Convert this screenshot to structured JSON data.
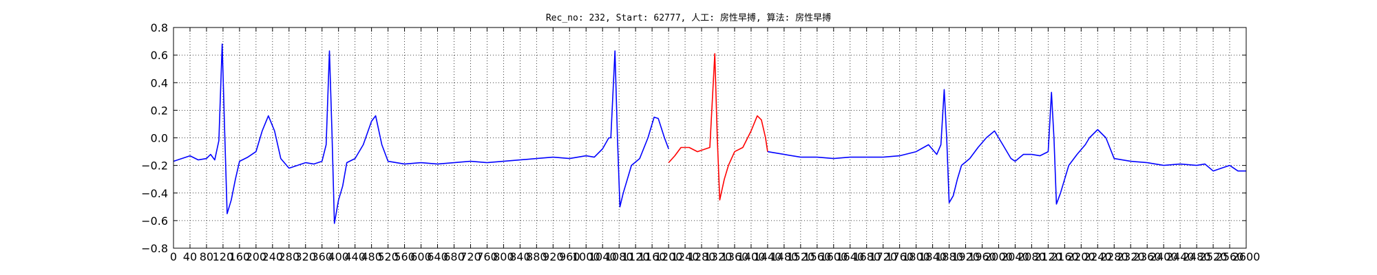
{
  "chart_data": {
    "type": "line",
    "title": "Rec_no: 232, Start: 62777, 人工: 房性早搏, 算法: 房性早搏",
    "xlabel": "",
    "ylabel": "",
    "xlim": [
      0,
      1560
    ],
    "ylim": [
      -0.8,
      0.8
    ],
    "grid": true,
    "x_step": 20,
    "x_tick_labels": [
      "0",
      "40",
      "80",
      "120",
      "160",
      "200",
      "240",
      "280",
      "320",
      "360",
      "400",
      "440",
      "480",
      "520",
      "560",
      "600",
      "640",
      "680",
      "720",
      "760",
      "800",
      "840",
      "880",
      "920",
      "960",
      "1000",
      "1040",
      "1080",
      "1120",
      "1160",
      "1200",
      "1240",
      "1280",
      "1320",
      "1360",
      "1400",
      "1440",
      "1480",
      "1520",
      "1560",
      "1600",
      "1640",
      "1680",
      "1720",
      "1760",
      "1800",
      "1840",
      "1880",
      "1920",
      "1960",
      "2000",
      "2040",
      "2080",
      "2120",
      "2160",
      "2200",
      "2240",
      "2280",
      "2320",
      "2360",
      "2400",
      "2440",
      "2480",
      "2520",
      "2560",
      "2600"
    ],
    "y_ticks": [
      "0.8",
      "0.6",
      "0.4",
      "0.2",
      "0.0",
      "−0.2",
      "−0.4",
      "−0.6",
      "−0.8"
    ],
    "colors": {
      "normal": "#0000ff",
      "highlight": "#ff0000"
    },
    "series": [
      {
        "color": "blue",
        "x_range": [
          0,
          1200
        ],
        "points": [
          [
            0,
            -0.17
          ],
          [
            20,
            -0.15
          ],
          [
            40,
            -0.13
          ],
          [
            60,
            -0.16
          ],
          [
            80,
            -0.15
          ],
          [
            90,
            -0.12
          ],
          [
            100,
            -0.16
          ],
          [
            110,
            -0.02
          ],
          [
            118,
            0.68
          ],
          [
            124,
            0.05
          ],
          [
            130,
            -0.55
          ],
          [
            140,
            -0.45
          ],
          [
            150,
            -0.3
          ],
          [
            160,
            -0.17
          ],
          [
            180,
            -0.14
          ],
          [
            200,
            -0.1
          ],
          [
            215,
            0.05
          ],
          [
            230,
            0.16
          ],
          [
            245,
            0.05
          ],
          [
            260,
            -0.15
          ],
          [
            280,
            -0.22
          ],
          [
            300,
            -0.2
          ],
          [
            320,
            -0.18
          ],
          [
            340,
            -0.19
          ],
          [
            360,
            -0.17
          ],
          [
            370,
            -0.05
          ],
          [
            378,
            0.63
          ],
          [
            384,
            0.05
          ],
          [
            390,
            -0.62
          ],
          [
            400,
            -0.45
          ],
          [
            410,
            -0.35
          ],
          [
            420,
            -0.18
          ],
          [
            440,
            -0.15
          ],
          [
            460,
            -0.05
          ],
          [
            480,
            0.12
          ],
          [
            490,
            0.16
          ],
          [
            505,
            -0.05
          ],
          [
            520,
            -0.17
          ],
          [
            560,
            -0.19
          ],
          [
            600,
            -0.18
          ],
          [
            640,
            -0.19
          ],
          [
            680,
            -0.18
          ],
          [
            720,
            -0.17
          ],
          [
            760,
            -0.18
          ],
          [
            800,
            -0.17
          ],
          [
            840,
            -0.16
          ],
          [
            880,
            -0.15
          ],
          [
            920,
            -0.14
          ],
          [
            960,
            -0.15
          ],
          [
            1000,
            -0.13
          ],
          [
            1020,
            -0.14
          ],
          [
            1040,
            -0.08
          ],
          [
            1055,
            0.0
          ],
          [
            1060,
            0.0
          ],
          [
            1070,
            0.63
          ],
          [
            1076,
            0.0
          ],
          [
            1082,
            -0.5
          ],
          [
            1090,
            -0.4
          ],
          [
            1100,
            -0.3
          ],
          [
            1110,
            -0.2
          ],
          [
            1130,
            -0.15
          ],
          [
            1150,
            0.0
          ],
          [
            1165,
            0.15
          ],
          [
            1175,
            0.14
          ],
          [
            1190,
            0.0
          ],
          [
            1200,
            -0.08
          ]
        ]
      },
      {
        "color": "red",
        "x_range": [
          1200,
          1440
        ],
        "points": [
          [
            1200,
            -0.18
          ],
          [
            1215,
            -0.13
          ],
          [
            1230,
            -0.07
          ],
          [
            1250,
            -0.07
          ],
          [
            1270,
            -0.1
          ],
          [
            1290,
            -0.08
          ],
          [
            1300,
            -0.07
          ],
          [
            1312,
            0.61
          ],
          [
            1318,
            0.0
          ],
          [
            1324,
            -0.45
          ],
          [
            1335,
            -0.3
          ],
          [
            1345,
            -0.2
          ],
          [
            1360,
            -0.1
          ],
          [
            1380,
            -0.07
          ],
          [
            1400,
            0.05
          ],
          [
            1415,
            0.16
          ],
          [
            1425,
            0.13
          ],
          [
            1435,
            0.0
          ],
          [
            1440,
            -0.1
          ]
        ]
      },
      {
        "color": "blue",
        "x_range": [
          1440,
          2600
        ],
        "points": [
          [
            1440,
            -0.1
          ],
          [
            1480,
            -0.12
          ],
          [
            1520,
            -0.14
          ],
          [
            1560,
            -0.14
          ],
          [
            1600,
            -0.15
          ],
          [
            1640,
            -0.14
          ],
          [
            1680,
            -0.14
          ],
          [
            1720,
            -0.14
          ],
          [
            1760,
            -0.13
          ],
          [
            1800,
            -0.1
          ],
          [
            1830,
            -0.05
          ],
          [
            1850,
            -0.12
          ],
          [
            1860,
            -0.05
          ],
          [
            1868,
            0.35
          ],
          [
            1874,
            0.0
          ],
          [
            1880,
            -0.47
          ],
          [
            1890,
            -0.42
          ],
          [
            1900,
            -0.3
          ],
          [
            1910,
            -0.2
          ],
          [
            1930,
            -0.15
          ],
          [
            1950,
            -0.07
          ],
          [
            1970,
            0.0
          ],
          [
            1990,
            0.05
          ],
          [
            2010,
            -0.05
          ],
          [
            2030,
            -0.15
          ],
          [
            2040,
            -0.17
          ],
          [
            2060,
            -0.12
          ],
          [
            2080,
            -0.12
          ],
          [
            2100,
            -0.13
          ],
          [
            2120,
            -0.1
          ],
          [
            2128,
            0.33
          ],
          [
            2134,
            0.0
          ],
          [
            2140,
            -0.48
          ],
          [
            2150,
            -0.4
          ],
          [
            2160,
            -0.3
          ],
          [
            2170,
            -0.2
          ],
          [
            2190,
            -0.12
          ],
          [
            2210,
            -0.05
          ],
          [
            2220,
            0.0
          ],
          [
            2240,
            0.06
          ],
          [
            2260,
            0.0
          ],
          [
            2280,
            -0.15
          ],
          [
            2320,
            -0.17
          ],
          [
            2360,
            -0.18
          ],
          [
            2400,
            -0.2
          ],
          [
            2440,
            -0.19
          ],
          [
            2480,
            -0.2
          ],
          [
            2500,
            -0.19
          ],
          [
            2520,
            -0.24
          ],
          [
            2540,
            -0.22
          ],
          [
            2560,
            -0.2
          ],
          [
            2580,
            -0.24
          ],
          [
            2600,
            -0.24
          ]
        ]
      }
    ]
  }
}
